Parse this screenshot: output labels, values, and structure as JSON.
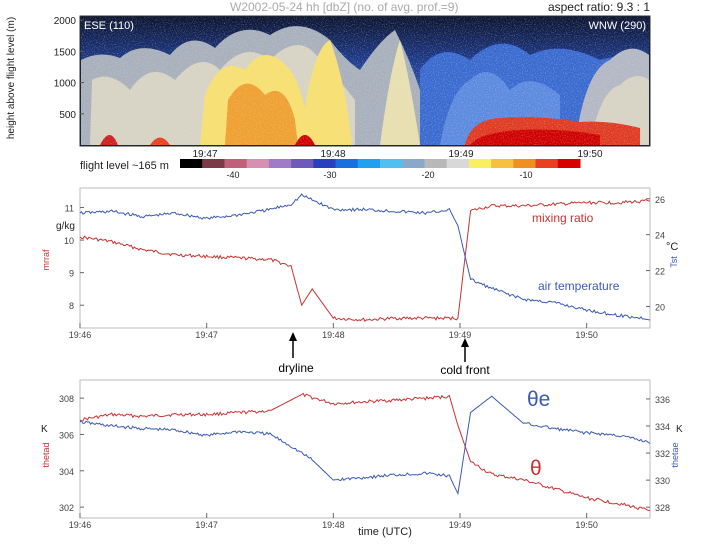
{
  "radar": {
    "title": "W2002-05-24 hh [dbZ] (no. of avg. prof.=9)",
    "aspect": "aspect ratio: 9.3 : 1",
    "left_label": "ESE (110)",
    "right_label": "WNW (290)",
    "ylabel": "height above flight level (m)",
    "yticks": [
      "2000",
      "1500",
      "1000",
      "500"
    ],
    "flight_level": "flight level ~165 m",
    "time_ticks": [
      "19:47",
      "19:48",
      "19:49",
      "19:50"
    ],
    "colorbar_ticks": [
      "-40",
      "-30",
      "-20",
      "-10"
    ],
    "colorbar_colors": [
      "#000000",
      "#7a3a46",
      "#c2607a",
      "#d890b2",
      "#a07cc6",
      "#6e5ab8",
      "#2840c0",
      "#1870e0",
      "#20a0f0",
      "#50c0f0",
      "#8aa8c8",
      "#b8b8b8",
      "#d8d8d8",
      "#f8f060",
      "#f8c040",
      "#f09020",
      "#e84020",
      "#d80000"
    ]
  },
  "chart_data": [
    {
      "type": "line",
      "title": "",
      "xlabel": "",
      "x_ticks": [
        "19:46",
        "19:47",
        "19:48",
        "19:49",
        "19:50"
      ],
      "xlim": [
        "19:46",
        "19:50:30"
      ],
      "y_left": {
        "label": "mrraf",
        "unit": "g/kg",
        "ticks": [
          "11",
          "10",
          "9",
          "8"
        ],
        "lim": [
          7.3,
          11.6
        ]
      },
      "y_right": {
        "label": "Tst",
        "unit": "°C",
        "ticks": [
          "26",
          "24",
          "22",
          "20"
        ],
        "lim": [
          18.8,
          26.6
        ]
      },
      "series": [
        {
          "name": "mixing ratio",
          "axis": "left",
          "color": "#c83232",
          "x": [
            "19:46:00",
            "19:46:15",
            "19:46:30",
            "19:46:45",
            "19:47:00",
            "19:47:15",
            "19:47:30",
            "19:47:40",
            "19:47:45",
            "19:47:50",
            "19:48:00",
            "19:48:15",
            "19:48:30",
            "19:48:45",
            "19:48:55",
            "19:48:59",
            "19:49:05",
            "19:49:15",
            "19:49:30",
            "19:49:45",
            "19:50:00",
            "19:50:15",
            "19:50:30"
          ],
          "values": [
            10.1,
            9.95,
            9.7,
            9.55,
            9.5,
            9.45,
            9.4,
            9.2,
            8.0,
            8.5,
            7.6,
            7.55,
            7.6,
            7.6,
            7.6,
            7.6,
            10.9,
            11.05,
            11.05,
            11.1,
            11.15,
            11.15,
            11.2
          ]
        },
        {
          "name": "air temperature",
          "axis": "right",
          "color": "#3c5ab4",
          "x": [
            "19:46:00",
            "19:46:15",
            "19:46:30",
            "19:46:45",
            "19:47:00",
            "19:47:15",
            "19:47:30",
            "19:47:40",
            "19:47:45",
            "19:48:00",
            "19:48:15",
            "19:48:30",
            "19:48:45",
            "19:48:55",
            "19:48:59",
            "19:49:05",
            "19:49:15",
            "19:49:30",
            "19:49:45",
            "19:50:00",
            "19:50:15",
            "19:50:30"
          ],
          "values": [
            25.2,
            25.3,
            25.0,
            25.2,
            24.9,
            25.1,
            25.4,
            25.7,
            26.2,
            25.4,
            25.4,
            25.3,
            25.2,
            25.4,
            24.5,
            21.5,
            21.0,
            20.4,
            20.2,
            19.8,
            19.5,
            19.3
          ]
        }
      ]
    },
    {
      "type": "line",
      "title": "",
      "xlabel": "time (UTC)",
      "x_ticks": [
        "19:46",
        "19:47",
        "19:48",
        "19:49",
        "19:50"
      ],
      "xlim": [
        "19:46",
        "19:50:30"
      ],
      "y_left": {
        "label": "thetad",
        "unit": "K",
        "ticks": [
          "308",
          "306",
          "304",
          "302"
        ],
        "lim": [
          301.4,
          309.0
        ]
      },
      "y_right": {
        "label": "thetae",
        "unit": "K",
        "ticks": [
          "336",
          "334",
          "332",
          "330",
          "328"
        ],
        "lim": [
          327.2,
          337.4
        ]
      },
      "series": [
        {
          "name": "θ",
          "axis": "left",
          "color": "#c83232",
          "x": [
            "19:46:00",
            "19:46:15",
            "19:46:30",
            "19:46:45",
            "19:47:00",
            "19:47:15",
            "19:47:30",
            "19:47:45",
            "19:48:00",
            "19:48:15",
            "19:48:30",
            "19:48:45",
            "19:48:55",
            "19:48:59",
            "19:49:05",
            "19:49:15",
            "19:49:30",
            "19:49:45",
            "19:50:00",
            "19:50:15",
            "19:50:30"
          ],
          "values": [
            306.8,
            307.1,
            307.0,
            307.1,
            307.1,
            307.2,
            307.3,
            308.2,
            307.7,
            307.8,
            307.9,
            308.0,
            308.1,
            306.5,
            304.5,
            303.8,
            303.5,
            303.0,
            302.5,
            302.2,
            301.8
          ]
        },
        {
          "name": "θe",
          "axis": "right",
          "color": "#3c5ab4",
          "x": [
            "19:46:00",
            "19:46:15",
            "19:46:30",
            "19:46:45",
            "19:47:00",
            "19:47:15",
            "19:47:30",
            "19:47:40",
            "19:47:50",
            "19:48:00",
            "19:48:15",
            "19:48:30",
            "19:48:45",
            "19:48:55",
            "19:48:59",
            "19:49:05",
            "19:49:15",
            "19:49:30",
            "19:49:45",
            "19:50:00",
            "19:50:15",
            "19:50:30"
          ],
          "values": [
            334.3,
            334.0,
            333.8,
            333.7,
            333.3,
            333.6,
            333.4,
            332.5,
            331.5,
            330.0,
            330.2,
            330.4,
            330.5,
            330.3,
            329.0,
            335.0,
            336.2,
            334.2,
            333.8,
            333.5,
            333.3,
            332.8
          ]
        }
      ],
      "annotations": [
        "θe",
        "θ"
      ]
    }
  ],
  "markers": {
    "dryline": "dryline",
    "cold_front": "cold front"
  }
}
